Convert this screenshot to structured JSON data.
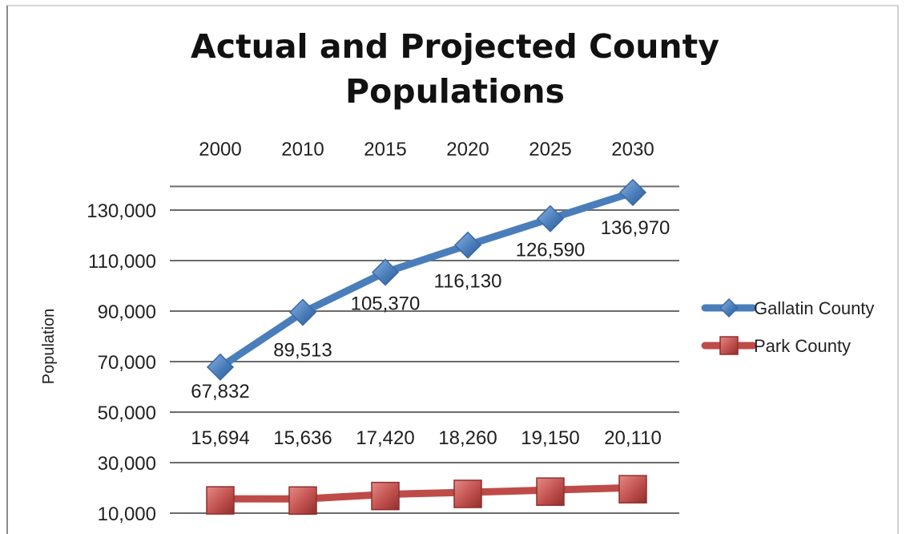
{
  "chart_data": {
    "type": "line",
    "title_lines": [
      "Actual and Projected County",
      "Populations"
    ],
    "xlabel": "",
    "ylabel": "Population",
    "categories": [
      "2000",
      "2010",
      "2015",
      "2020",
      "2025",
      "2030"
    ],
    "y_ticks": [
      "130,000",
      "110,000",
      "90,000",
      "70,000",
      "50,000",
      "30,000",
      "10,000"
    ],
    "ylim": [
      10000,
      140000
    ],
    "x_axis_position": "top",
    "grid": true,
    "legend_position": "right",
    "series": [
      {
        "name": "Gallatin County",
        "values": [
          67832,
          89513,
          105370,
          116130,
          126590,
          136970
        ],
        "labels": [
          "67,832",
          "89,513",
          "105,370",
          "116,130",
          "126,590",
          "136,970"
        ],
        "color": "#4a7ebb",
        "marker": "diamond"
      },
      {
        "name": "Park County",
        "values": [
          15694,
          15636,
          17420,
          18260,
          19150,
          20110
        ],
        "labels": [
          "15,694",
          "15,636",
          "17,420",
          "18,260",
          "19,150",
          "20,110"
        ],
        "color": "#be4b48",
        "marker": "square"
      }
    ]
  }
}
